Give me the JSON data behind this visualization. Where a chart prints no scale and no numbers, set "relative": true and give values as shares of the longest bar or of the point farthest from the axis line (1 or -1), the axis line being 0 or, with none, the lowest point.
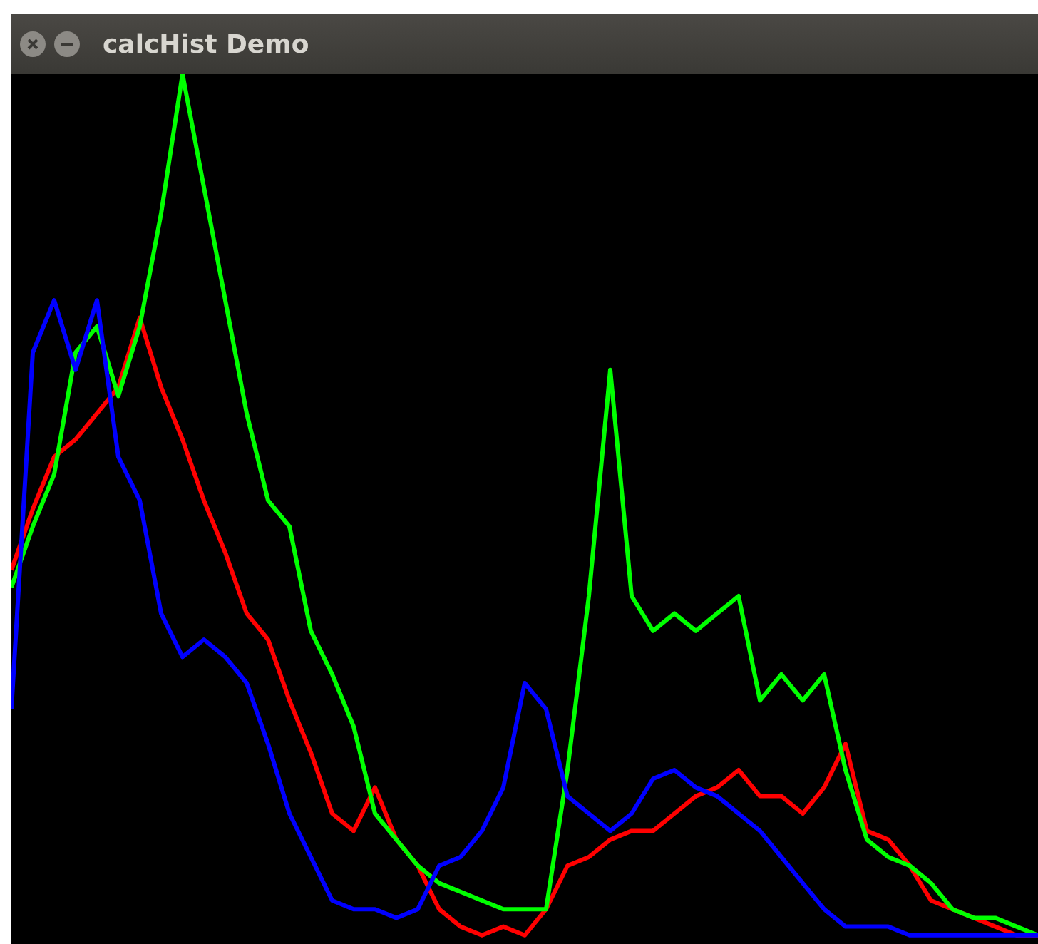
{
  "chart_data": {
    "type": "line",
    "title": "calcHist Demo",
    "relative": true,
    "grid": false,
    "legend": false,
    "marker": "none",
    "line_style": "solid",
    "categories": [
      null,
      null,
      null,
      null,
      null,
      null,
      null,
      null,
      null,
      null,
      null,
      null,
      null,
      null,
      null,
      null,
      null,
      null,
      null,
      null,
      null,
      null,
      null,
      null,
      null,
      null,
      null,
      null,
      null,
      null,
      null,
      null,
      null,
      null,
      null,
      null,
      null,
      null,
      null,
      null,
      null,
      null,
      null,
      null,
      null,
      null,
      null,
      null,
      null
    ],
    "series": [
      {
        "color": "#0000ff",
        "values": [
          0.27,
          0.68,
          0.74,
          0.66,
          0.74,
          0.56,
          0.51,
          0.38,
          0.33,
          0.35,
          0.33,
          0.3,
          0.23,
          0.15,
          0.1,
          0.05,
          0.04,
          0.04,
          0.03,
          0.04,
          0.09,
          0.1,
          0.13,
          0.18,
          0.3,
          0.27,
          0.17,
          0.15,
          0.13,
          0.15,
          0.19,
          0.2,
          0.18,
          0.17,
          0.15,
          0.13,
          0.1,
          0.07,
          0.04,
          0.02,
          0.02,
          0.02,
          0.01,
          0.01,
          0.01,
          0.01,
          0.01,
          0.01,
          0.01
        ]
      },
      {
        "color": "#00ff00",
        "values": [
          0.41,
          0.48,
          0.54,
          0.68,
          0.71,
          0.63,
          0.71,
          0.84,
          1,
          0.87,
          0.74,
          0.61,
          0.51,
          0.48,
          0.36,
          0.31,
          0.25,
          0.15,
          0.12,
          0.09,
          0.07,
          0.06,
          0.05,
          0.04,
          0.04,
          0.04,
          0.2,
          0.4,
          0.66,
          0.4,
          0.36,
          0.38,
          0.36,
          0.38,
          0.4,
          0.28,
          0.31,
          0.28,
          0.31,
          0.2,
          0.12,
          0.1,
          0.09,
          0.07,
          0.04,
          0.03,
          0.03,
          0.02,
          0.01
        ]
      },
      {
        "color": "#ff0000",
        "values": [
          0.43,
          0.5,
          0.56,
          0.58,
          0.61,
          0.64,
          0.72,
          0.64,
          0.58,
          0.51,
          0.45,
          0.38,
          0.35,
          0.28,
          0.22,
          0.15,
          0.13,
          0.18,
          0.12,
          0.09,
          0.04,
          0.02,
          0.01,
          0.02,
          0.01,
          0.04,
          0.09,
          0.1,
          0.12,
          0.13,
          0.13,
          0.15,
          0.17,
          0.18,
          0.2,
          0.17,
          0.17,
          0.15,
          0.18,
          0.23,
          0.13,
          0.12,
          0.09,
          0.05,
          0.04,
          0.03,
          0.02,
          0.01,
          0.01
        ]
      }
    ]
  }
}
